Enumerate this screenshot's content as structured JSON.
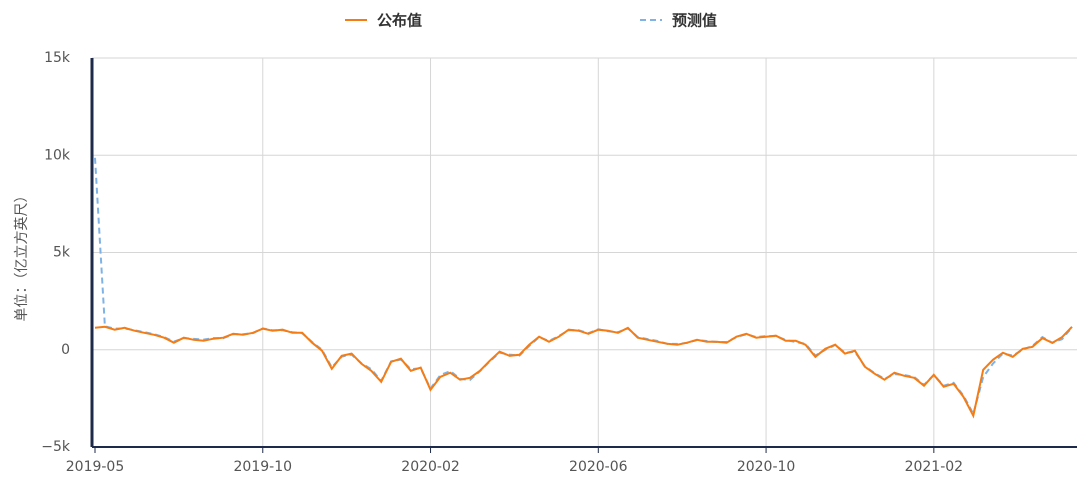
{
  "chart_data": {
    "type": "line",
    "y_label": "单位：（亿立方英尺）",
    "categories": [
      "2019-05",
      null,
      null,
      null,
      null,
      null,
      null,
      null,
      null,
      null,
      null,
      null,
      null,
      null,
      null,
      null,
      null,
      "2019-10",
      null,
      null,
      null,
      null,
      null,
      null,
      null,
      null,
      null,
      null,
      null,
      null,
      null,
      null,
      null,
      null,
      "2020-02",
      null,
      null,
      null,
      null,
      null,
      null,
      null,
      null,
      null,
      null,
      null,
      null,
      null,
      null,
      null,
      null,
      "2020-06",
      null,
      null,
      null,
      null,
      null,
      null,
      null,
      null,
      null,
      null,
      null,
      null,
      null,
      null,
      null,
      null,
      "2020-10",
      null,
      null,
      null,
      null,
      null,
      null,
      null,
      null,
      null,
      null,
      null,
      null,
      null,
      null,
      null,
      null,
      "2021-02",
      null,
      null,
      null,
      null,
      null,
      null,
      null,
      null,
      null,
      null,
      null,
      null,
      null,
      null
    ],
    "series": [
      {
        "name": "公布值",
        "color": "#f57c14",
        "dash": false,
        "values": [
          1130,
          1180,
          1030,
          1130,
          980,
          870,
          770,
          620,
          360,
          620,
          510,
          460,
          570,
          620,
          820,
          770,
          870,
          1080,
          980,
          1030,
          870,
          870,
          360,
          -50,
          -980,
          -310,
          -200,
          -720,
          -1080,
          -1650,
          -620,
          -460,
          -1080,
          -920,
          -2060,
          -1390,
          -1180,
          -1540,
          -1440,
          -1080,
          -570,
          -100,
          -310,
          -260,
          260,
          670,
          410,
          670,
          1030,
          980,
          820,
          1030,
          980,
          870,
          1130,
          620,
          510,
          410,
          310,
          260,
          360,
          510,
          410,
          410,
          360,
          670,
          820,
          620,
          670,
          720,
          460,
          460,
          260,
          -360,
          50,
          260,
          -200,
          -50,
          -870,
          -1230,
          -1540,
          -1180,
          -1340,
          -1440,
          -1850,
          -1290,
          -1900,
          -1750,
          -2420,
          -3390,
          -1030,
          -510,
          -150,
          -360,
          50,
          150,
          600,
          350,
          650,
          1180
        ]
      },
      {
        "name": "预测值",
        "color": "#7fb2e5",
        "dash": true,
        "values": [
          9870,
          1200,
          1080,
          1100,
          1000,
          900,
          800,
          650,
          420,
          600,
          560,
          520,
          600,
          600,
          800,
          800,
          850,
          1100,
          1000,
          1000,
          900,
          850,
          400,
          0,
          -900,
          -350,
          -250,
          -700,
          -1000,
          -1600,
          -600,
          -500,
          -1000,
          -950,
          -2000,
          -1300,
          -1100,
          -1500,
          -1550,
          -1100,
          -600,
          -150,
          -250,
          -300,
          200,
          650,
          450,
          700,
          1000,
          1000,
          850,
          1050,
          950,
          900,
          1100,
          650,
          550,
          450,
          300,
          300,
          350,
          500,
          450,
          400,
          400,
          650,
          800,
          650,
          700,
          700,
          500,
          400,
          300,
          -300,
          0,
          250,
          -150,
          -100,
          -850,
          -1200,
          -1500,
          -1250,
          -1300,
          -1400,
          -1800,
          -1300,
          -1850,
          -1700,
          -2350,
          -3300,
          -1400,
          -700,
          -200,
          -300,
          0,
          200,
          650,
          350,
          550,
          1150
        ]
      }
    ],
    "ylim": [
      -5000,
      15000
    ],
    "yticks": [
      {
        "value": -5000,
        "label": "−5k"
      },
      0,
      {
        "value": 5000,
        "label": "5k"
      },
      {
        "value": 10000,
        "label": "10k"
      },
      {
        "value": 15000,
        "label": "15k"
      }
    ],
    "grid": true,
    "legend": "top"
  }
}
